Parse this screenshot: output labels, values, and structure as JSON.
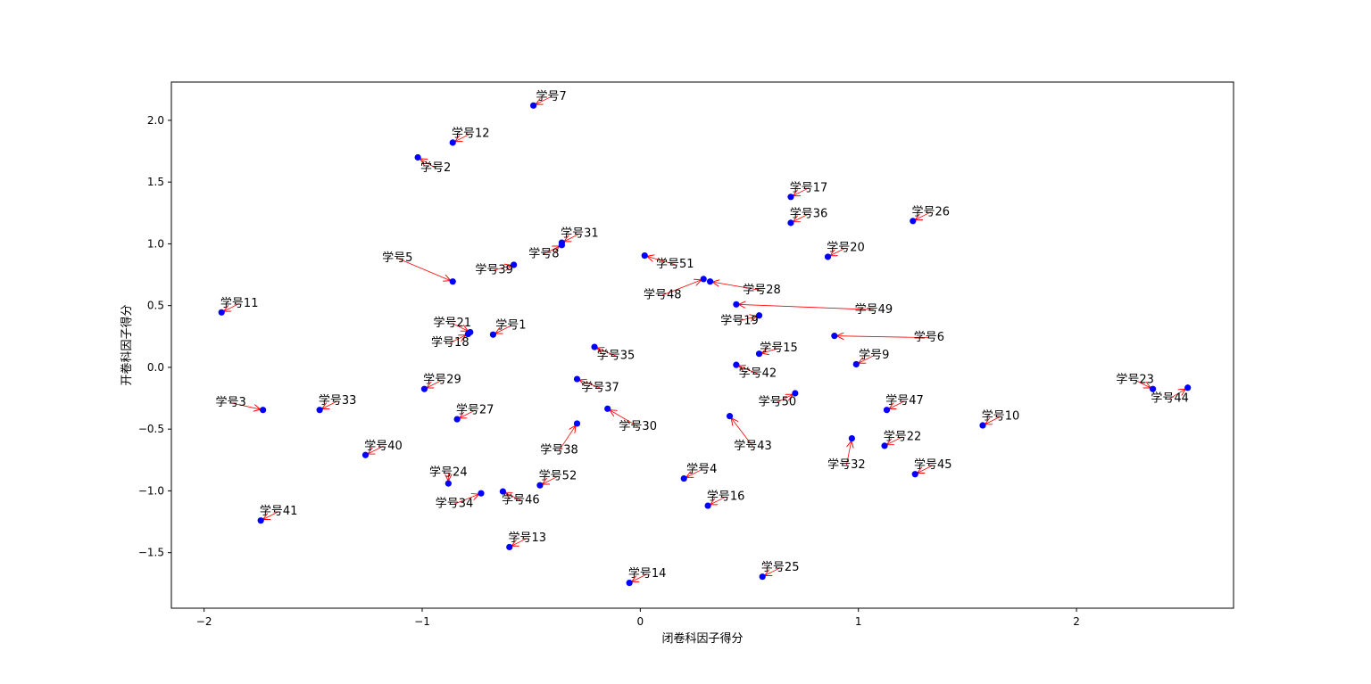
{
  "chart_data": {
    "type": "scatter",
    "xlabel": "闭卷科因子得分",
    "ylabel": "开卷科因子得分",
    "xlim": [
      -2.15,
      2.72
    ],
    "ylim": [
      -1.95,
      2.31
    ],
    "xticks": [
      -2,
      -1,
      0,
      1,
      2
    ],
    "yticks": [
      -1.5,
      -1.0,
      -0.5,
      0.0,
      0.5,
      1.0,
      1.5,
      2.0
    ],
    "point_color": "#0000ff",
    "arrow_color": "#ff0000",
    "grid": false,
    "points": [
      {
        "label": "学号1",
        "x": -0.675,
        "y": 0.265,
        "dx": 20,
        "dy": -10
      },
      {
        "label": "学号2",
        "x": -1.02,
        "y": 1.7,
        "dx": 20,
        "dy": 12
      },
      {
        "label": "学号3",
        "x": -1.73,
        "y": -0.345,
        "dx": -36,
        "dy": -8
      },
      {
        "label": "学号4",
        "x": 0.2,
        "y": -0.9,
        "dx": 20,
        "dy": -10
      },
      {
        "label": "学号5",
        "x": -0.86,
        "y": 0.695,
        "dx": -62,
        "dy": -26
      },
      {
        "label": "学号6",
        "x": 0.89,
        "y": 0.255,
        "dx": 106,
        "dy": 2
      },
      {
        "label": "学号7",
        "x": -0.49,
        "y": 2.12,
        "dx": 20,
        "dy": -10
      },
      {
        "label": "学号8",
        "x": -0.36,
        "y": 0.99,
        "dx": -20,
        "dy": 10
      },
      {
        "label": "学号9",
        "x": 0.99,
        "y": 0.025,
        "dx": 20,
        "dy": -10
      },
      {
        "label": "学号10",
        "x": 1.57,
        "y": -0.47,
        "dx": 20,
        "dy": -10
      },
      {
        "label": "学号11",
        "x": -1.92,
        "y": 0.445,
        "dx": 20,
        "dy": -10
      },
      {
        "label": "学号12",
        "x": -0.86,
        "y": 1.82,
        "dx": 20,
        "dy": -10
      },
      {
        "label": "学号13",
        "x": -0.6,
        "y": -1.455,
        "dx": 20,
        "dy": -10
      },
      {
        "label": "学号14",
        "x": -0.05,
        "y": -1.745,
        "dx": 20,
        "dy": -10
      },
      {
        "label": "学号15",
        "x": 0.545,
        "y": 0.11,
        "dx": 22,
        "dy": -6
      },
      {
        "label": "学号16",
        "x": 0.31,
        "y": -1.12,
        "dx": 20,
        "dy": -10
      },
      {
        "label": "学号17",
        "x": 0.69,
        "y": 1.38,
        "dx": 20,
        "dy": -10
      },
      {
        "label": "学号18",
        "x": -0.79,
        "y": 0.27,
        "dx": -20,
        "dy": 10
      },
      {
        "label": "学号19",
        "x": 0.545,
        "y": 0.42,
        "dx": -22,
        "dy": 6
      },
      {
        "label": "学号20",
        "x": 0.86,
        "y": 0.895,
        "dx": 20,
        "dy": -10
      },
      {
        "label": "学号21",
        "x": -0.78,
        "y": 0.285,
        "dx": -20,
        "dy": -10
      },
      {
        "label": "学号22",
        "x": 1.12,
        "y": -0.635,
        "dx": 20,
        "dy": -10
      },
      {
        "label": "学号23",
        "x": 2.35,
        "y": -0.175,
        "dx": -20,
        "dy": -10
      },
      {
        "label": "学号24",
        "x": -0.88,
        "y": -0.94,
        "dx": 0,
        "dy": -12
      },
      {
        "label": "学号25",
        "x": 0.56,
        "y": -1.695,
        "dx": 20,
        "dy": -10
      },
      {
        "label": "学号26",
        "x": 1.25,
        "y": 1.185,
        "dx": 20,
        "dy": -10
      },
      {
        "label": "学号27",
        "x": -0.84,
        "y": -0.42,
        "dx": 20,
        "dy": -10
      },
      {
        "label": "学号28",
        "x": 0.32,
        "y": 0.695,
        "dx": 58,
        "dy": 10
      },
      {
        "label": "学号29",
        "x": -0.99,
        "y": -0.175,
        "dx": 20,
        "dy": -10
      },
      {
        "label": "学号30",
        "x": -0.15,
        "y": -0.335,
        "dx": 34,
        "dy": 20
      },
      {
        "label": "学号31",
        "x": -0.36,
        "y": 1.01,
        "dx": 20,
        "dy": -10
      },
      {
        "label": "学号32",
        "x": 0.97,
        "y": -0.575,
        "dx": -6,
        "dy": 30
      },
      {
        "label": "学号33",
        "x": -1.47,
        "y": -0.345,
        "dx": 20,
        "dy": -10
      },
      {
        "label": "学号34",
        "x": -0.73,
        "y": -1.02,
        "dx": -30,
        "dy": 12
      },
      {
        "label": "学号35",
        "x": -0.21,
        "y": 0.165,
        "dx": 24,
        "dy": 10
      },
      {
        "label": "学号36",
        "x": 0.69,
        "y": 1.17,
        "dx": 20,
        "dy": -10
      },
      {
        "label": "学号37",
        "x": -0.29,
        "y": -0.095,
        "dx": 26,
        "dy": 10
      },
      {
        "label": "学号38",
        "x": -0.29,
        "y": -0.455,
        "dx": -20,
        "dy": 30
      },
      {
        "label": "学号39",
        "x": -0.58,
        "y": 0.83,
        "dx": -22,
        "dy": 6
      },
      {
        "label": "学号40",
        "x": -1.26,
        "y": -0.71,
        "dx": 20,
        "dy": -10
      },
      {
        "label": "学号41",
        "x": -1.74,
        "y": -1.24,
        "dx": 20,
        "dy": -10
      },
      {
        "label": "学号42",
        "x": 0.44,
        "y": 0.02,
        "dx": 24,
        "dy": 10
      },
      {
        "label": "学号43",
        "x": 0.41,
        "y": -0.395,
        "dx": 26,
        "dy": 34
      },
      {
        "label": "学号44",
        "x": 2.51,
        "y": -0.165,
        "dx": -20,
        "dy": 12
      },
      {
        "label": "学号45",
        "x": 1.26,
        "y": -0.865,
        "dx": 20,
        "dy": -10
      },
      {
        "label": "学号46",
        "x": -0.63,
        "y": -1.005,
        "dx": 20,
        "dy": 10
      },
      {
        "label": "学号47",
        "x": 1.13,
        "y": -0.345,
        "dx": 20,
        "dy": -10
      },
      {
        "label": "学号48",
        "x": 0.29,
        "y": 0.715,
        "dx": -46,
        "dy": 18
      },
      {
        "label": "学号49",
        "x": 0.44,
        "y": 0.51,
        "dx": 154,
        "dy": 6
      },
      {
        "label": "学号50",
        "x": 0.71,
        "y": -0.21,
        "dx": -20,
        "dy": 10
      },
      {
        "label": "学号51",
        "x": 0.02,
        "y": 0.905,
        "dx": 34,
        "dy": 10
      },
      {
        "label": "学号52",
        "x": -0.46,
        "y": -0.955,
        "dx": 20,
        "dy": -10
      }
    ]
  }
}
